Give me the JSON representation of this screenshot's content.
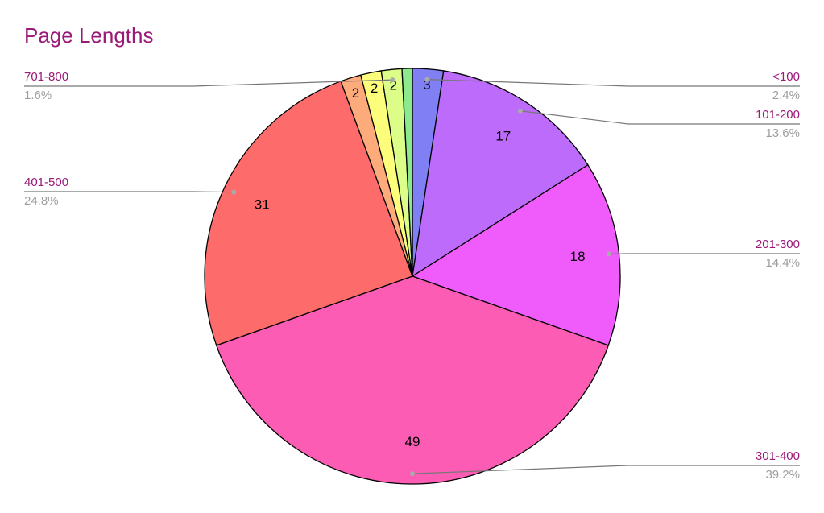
{
  "chart_data": {
    "type": "pie",
    "title": "Page Lengths",
    "categories": [
      "<100",
      "101-200",
      "201-300",
      "301-400",
      "401-500",
      null,
      null,
      "701-800",
      null
    ],
    "values": [
      3,
      17,
      18,
      49,
      31,
      2,
      2,
      2,
      1
    ],
    "value_labels": [
      "3",
      "17",
      "18",
      "49",
      "31",
      "2",
      "2",
      "2",
      null
    ],
    "percent_labels": [
      "2.4%",
      "13.6%",
      "14.4%",
      "39.2%",
      "24.8%",
      null,
      null,
      "1.6%",
      null
    ],
    "colors": [
      "#8080f4",
      "#bd6bfb",
      "#f05cfc",
      "#fd5cb5",
      "#fe6b6b",
      "#feab7c",
      "#fdfd7c",
      "#dcfd88",
      "#8ce98c"
    ]
  }
}
